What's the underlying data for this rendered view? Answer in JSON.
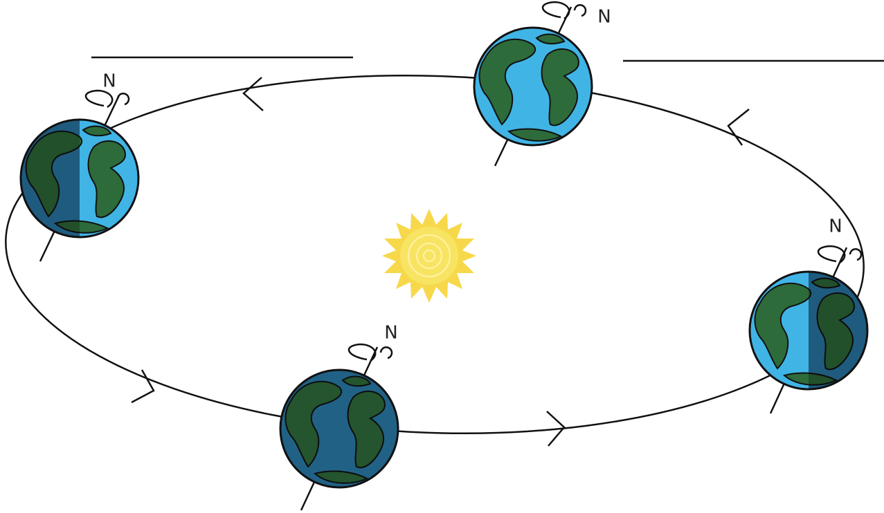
{
  "nodes": [
    {
      "label": "N"
    },
    {
      "label": "N"
    },
    {
      "label": "N"
    },
    {
      "label": "N"
    }
  ]
}
